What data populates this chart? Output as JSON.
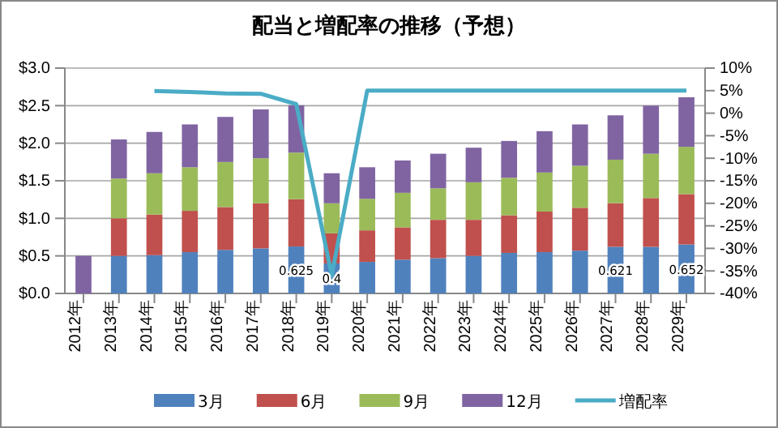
{
  "chart_data": {
    "type": "bar",
    "title": "配当と増配率の推移（予想）",
    "stacked": true,
    "grid": "y",
    "legend": "bottom",
    "categories": [
      "2012年",
      "2013年",
      "2014年",
      "2015年",
      "2016年",
      "2017年",
      "2018年",
      "2019年",
      "2020年",
      "2021年",
      "2022年",
      "2023年",
      "2024年",
      "2025年",
      "2026年",
      "2027年",
      "2028年",
      "2029年"
    ],
    "ylim": [
      0,
      3
    ],
    "yticks": [
      {
        "value": 0,
        "label": "$0.0"
      },
      {
        "value": 0.5,
        "label": "$0.5"
      },
      {
        "value": 1,
        "label": "$1.0"
      },
      {
        "value": 1.5,
        "label": "$1.5"
      },
      {
        "value": 2,
        "label": "$2.0"
      },
      {
        "value": 2.5,
        "label": "$2.5"
      },
      {
        "value": 3,
        "label": "$3.0"
      }
    ],
    "y2lim": [
      -40,
      10
    ],
    "y2ticks": [
      {
        "value": -40,
        "label": "-40%"
      },
      {
        "value": -35,
        "label": "-35%"
      },
      {
        "value": -30,
        "label": "-30%"
      },
      {
        "value": -25,
        "label": "-25%"
      },
      {
        "value": -20,
        "label": "-20%"
      },
      {
        "value": -15,
        "label": "-15%"
      },
      {
        "value": -10,
        "label": "-10%"
      },
      {
        "value": -5,
        "label": "-5%"
      },
      {
        "value": 0,
        "label": "0%"
      },
      {
        "value": 5,
        "label": "5%"
      },
      {
        "value": 10,
        "label": "10%"
      }
    ],
    "series": [
      {
        "name": "3月",
        "color": "#4f81bd",
        "values": [
          null,
          0.5,
          0.51,
          0.55,
          0.58,
          0.6,
          0.625,
          0.4,
          0.42,
          0.45,
          0.47,
          0.5,
          0.54,
          0.55,
          0.57,
          0.621,
          0.62,
          0.652
        ],
        "value_labels": [
          null,
          null,
          null,
          null,
          null,
          null,
          "0.625",
          "0.4",
          null,
          null,
          null,
          null,
          null,
          null,
          null,
          "0.621",
          null,
          "0.652"
        ]
      },
      {
        "name": "6月",
        "color": "#c0504d",
        "values": [
          null,
          0.5,
          0.54,
          0.55,
          0.57,
          0.6,
          0.63,
          0.4,
          0.42,
          0.43,
          0.51,
          0.48,
          0.5,
          0.54,
          0.57,
          0.58,
          0.65,
          0.67
        ]
      },
      {
        "name": "9月",
        "color": "#9bbb59",
        "values": [
          null,
          0.53,
          0.55,
          0.58,
          0.6,
          0.6,
          0.62,
          0.4,
          0.42,
          0.46,
          0.42,
          0.5,
          0.5,
          0.52,
          0.56,
          0.58,
          0.59,
          0.63
        ]
      },
      {
        "name": "12月",
        "color": "#8064a2",
        "values": [
          0.5,
          0.52,
          0.55,
          0.57,
          0.6,
          0.65,
          0.63,
          0.4,
          0.42,
          0.43,
          0.46,
          0.46,
          0.49,
          0.55,
          0.55,
          0.59,
          0.64,
          0.66
        ]
      },
      {
        "name": "増配率",
        "type": "line",
        "axis": "y2",
        "color": "#4bacc6",
        "values": [
          null,
          null,
          4.9,
          4.7,
          4.4,
          4.3,
          2,
          -36,
          5,
          5,
          5,
          5,
          5,
          5,
          5,
          5,
          5,
          5
        ]
      }
    ]
  }
}
